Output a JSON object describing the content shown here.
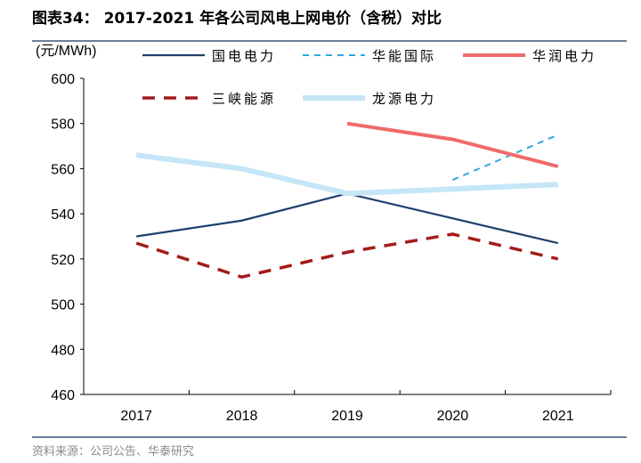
{
  "title": "图表34：  2017-2021 年各公司风电上网电价（含税）对比",
  "source": "资料来源：公司公告、华泰研究",
  "chart_data": {
    "type": "line",
    "title": "图表34：  2017-2021 年各公司风电上网电价（含税）对比",
    "ylabel": "(元/MWh)",
    "xlabel": "",
    "categories": [
      "2017",
      "2018",
      "2019",
      "2020",
      "2021"
    ],
    "ylim": [
      460,
      600
    ],
    "yticks": [
      460,
      480,
      500,
      520,
      540,
      560,
      580,
      600
    ],
    "grid": false,
    "legend": "top",
    "series": [
      {
        "name": "国电电力",
        "color": "#1f3f6e",
        "style": "solid",
        "values": [
          530,
          537,
          549,
          538,
          527
        ]
      },
      {
        "name": "华能国际",
        "color": "#2ea7dc",
        "style": "dashed",
        "values": [
          null,
          null,
          null,
          555,
          575
        ]
      },
      {
        "name": "华润电力",
        "color": "#f06a6a",
        "style": "solid",
        "values": [
          null,
          null,
          580,
          573,
          561
        ]
      },
      {
        "name": "三峡能源",
        "color": "#a31b1b",
        "style": "dashed",
        "values": [
          527,
          512,
          523,
          531,
          520
        ]
      },
      {
        "name": "龙源电力",
        "color": "#c5e6f7",
        "style": "solid",
        "values": [
          566,
          560,
          549,
          551,
          553
        ]
      }
    ]
  }
}
